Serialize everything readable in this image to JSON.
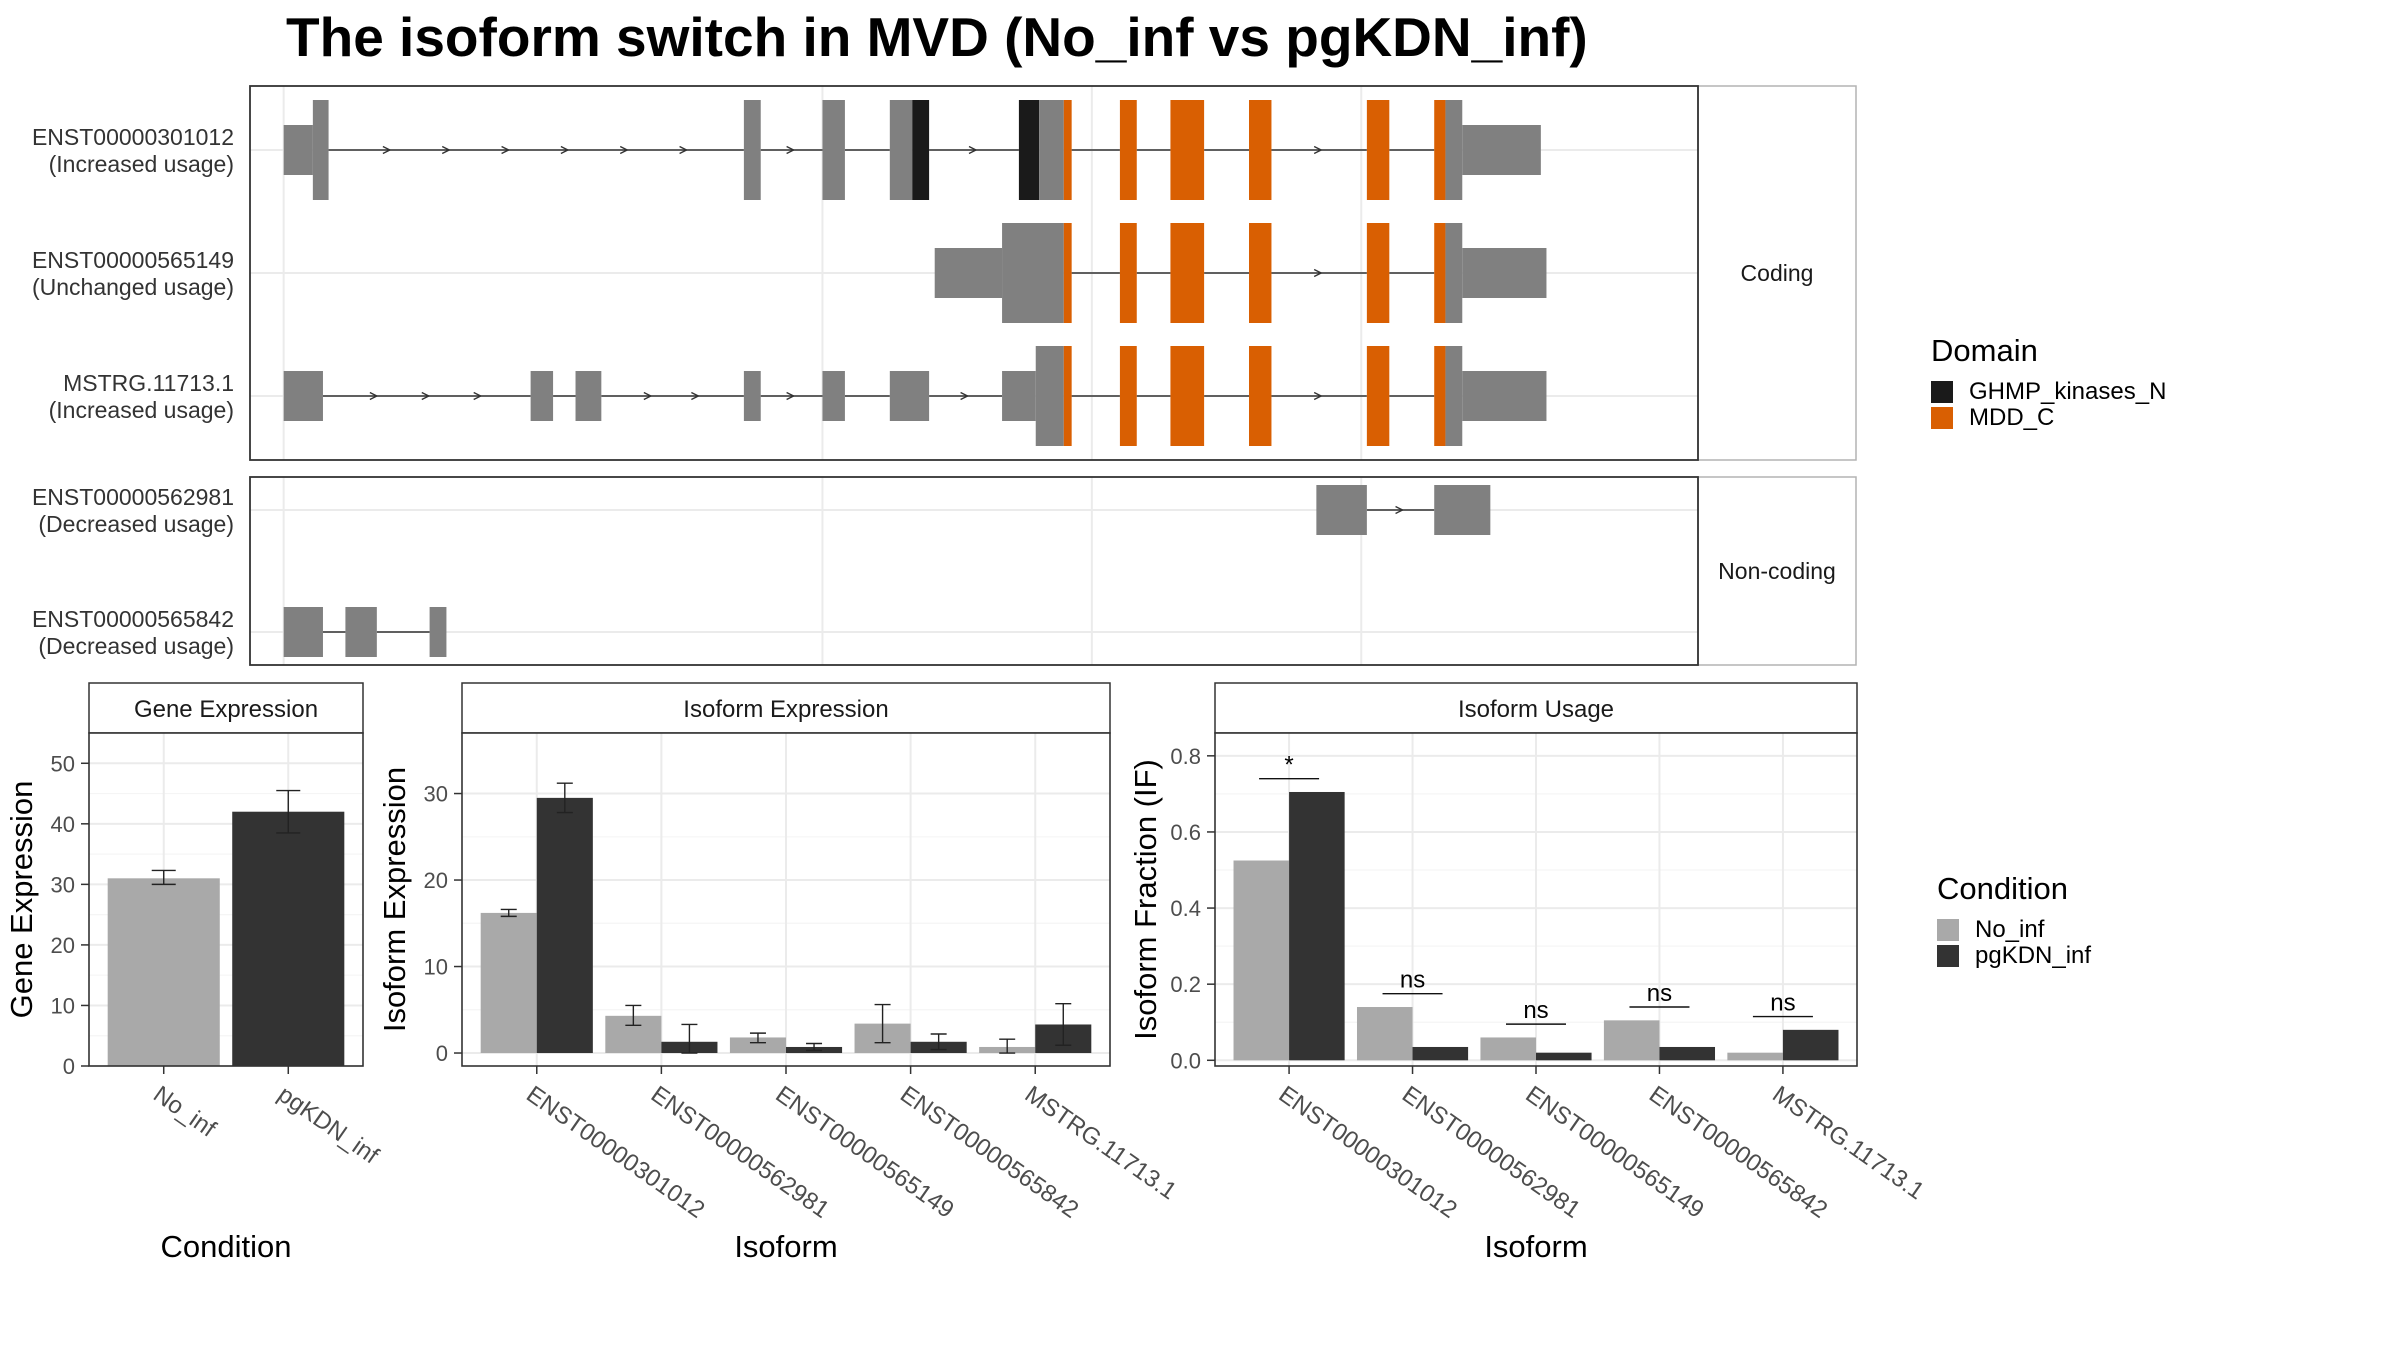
{
  "title": "The isoform switch in MVD (No_inf vs pgKDN_inf)",
  "colors": {
    "exon": "#808080",
    "GHMP_kinases_N": "#1a1a1a",
    "MDD_C": "#d95f02",
    "No_inf": "#a9a9a9",
    "pgKDN_inf": "#333333",
    "intron": "#333333",
    "grid": "#ebebeb",
    "border": "#333333",
    "strip_border": "#b3b3b3"
  },
  "facets": {
    "coding": {
      "label": "Coding"
    },
    "noncoding": {
      "label": "Non-coding"
    }
  },
  "transcripts": [
    {
      "name": "ENST00000301012",
      "usage": "(Increased usage)",
      "group": "coding",
      "segments": [
        {
          "s": 0.0,
          "e": 2.6,
          "w": 0.5
        },
        {
          "s": 2.6,
          "e": 4.0,
          "w": 1
        },
        {
          "s": 41.0,
          "e": 42.5,
          "w": 1
        },
        {
          "s": 48.0,
          "e": 50.0,
          "w": 1
        },
        {
          "s": 54.0,
          "e": 56.0,
          "w": 1
        },
        {
          "s": 56.0,
          "e": 57.5,
          "w": 1,
          "domain": "GHMP_kinases_N"
        },
        {
          "s": 65.5,
          "e": 67.3,
          "w": 1,
          "domain": "GHMP_kinases_N"
        },
        {
          "s": 67.3,
          "e": 69.5,
          "w": 1
        },
        {
          "s": 69.5,
          "e": 70.2,
          "w": 1,
          "domain": "MDD_C"
        },
        {
          "s": 74.5,
          "e": 76.0,
          "w": 1,
          "domain": "MDD_C"
        },
        {
          "s": 79.0,
          "e": 82.0,
          "w": 1,
          "domain": "MDD_C"
        },
        {
          "s": 86.0,
          "e": 88.0,
          "w": 1,
          "domain": "MDD_C"
        },
        {
          "s": 96.5,
          "e": 98.5,
          "w": 1,
          "domain": "MDD_C"
        },
        {
          "s": 102.5,
          "e": 103.5,
          "w": 1,
          "domain": "MDD_C"
        },
        {
          "s": 103.5,
          "e": 105.0,
          "w": 1
        },
        {
          "s": 105.0,
          "e": 112.0,
          "w": 0.5
        }
      ]
    },
    {
      "name": "ENST00000565149",
      "usage": "(Unchanged usage)",
      "group": "coding",
      "segments": [
        {
          "s": 58.0,
          "e": 64.0,
          "w": 0.5
        },
        {
          "s": 64.0,
          "e": 69.5,
          "w": 1
        },
        {
          "s": 69.5,
          "e": 70.2,
          "w": 1,
          "domain": "MDD_C"
        },
        {
          "s": 74.5,
          "e": 76.0,
          "w": 1,
          "domain": "MDD_C"
        },
        {
          "s": 79.0,
          "e": 82.0,
          "w": 1,
          "domain": "MDD_C"
        },
        {
          "s": 86.0,
          "e": 88.0,
          "w": 1,
          "domain": "MDD_C"
        },
        {
          "s": 96.5,
          "e": 98.5,
          "w": 1,
          "domain": "MDD_C"
        },
        {
          "s": 102.5,
          "e": 103.5,
          "w": 1,
          "domain": "MDD_C"
        },
        {
          "s": 103.5,
          "e": 105.0,
          "w": 1
        },
        {
          "s": 105.0,
          "e": 112.5,
          "w": 0.5
        }
      ]
    },
    {
      "name": "MSTRG.11713.1",
      "usage": "(Increased usage)",
      "group": "coding",
      "segments": [
        {
          "s": 0.0,
          "e": 3.5,
          "w": 0.5
        },
        {
          "s": 22.0,
          "e": 24.0,
          "w": 0.5
        },
        {
          "s": 26.0,
          "e": 28.3,
          "w": 0.5
        },
        {
          "s": 41.0,
          "e": 42.5,
          "w": 0.5
        },
        {
          "s": 48.0,
          "e": 50.0,
          "w": 0.5
        },
        {
          "s": 54.0,
          "e": 57.5,
          "w": 0.5
        },
        {
          "s": 64.0,
          "e": 67.0,
          "w": 0.5
        },
        {
          "s": 67.0,
          "e": 69.5,
          "w": 1
        },
        {
          "s": 69.5,
          "e": 70.2,
          "w": 1,
          "domain": "MDD_C"
        },
        {
          "s": 74.5,
          "e": 76.0,
          "w": 1,
          "domain": "MDD_C"
        },
        {
          "s": 79.0,
          "e": 82.0,
          "w": 1,
          "domain": "MDD_C"
        },
        {
          "s": 86.0,
          "e": 88.0,
          "w": 1,
          "domain": "MDD_C"
        },
        {
          "s": 96.5,
          "e": 98.5,
          "w": 1,
          "domain": "MDD_C"
        },
        {
          "s": 102.5,
          "e": 103.5,
          "w": 1,
          "domain": "MDD_C"
        },
        {
          "s": 103.5,
          "e": 105.0,
          "w": 1
        },
        {
          "s": 105.0,
          "e": 112.5,
          "w": 0.5
        }
      ]
    },
    {
      "name": "ENST00000562981",
      "usage": "(Decreased usage)",
      "group": "noncoding",
      "segments": [
        {
          "s": 92.0,
          "e": 96.5,
          "w": 0.5
        },
        {
          "s": 102.5,
          "e": 107.5,
          "w": 0.5
        }
      ]
    },
    {
      "name": "ENST00000565842",
      "usage": "(Decreased usage)",
      "group": "noncoding",
      "segments": [
        {
          "s": 0.0,
          "e": 3.5,
          "w": 0.5
        },
        {
          "s": 5.5,
          "e": 8.3,
          "w": 0.5
        },
        {
          "s": 13.0,
          "e": 14.5,
          "w": 0.5
        }
      ]
    }
  ],
  "legend_domain": {
    "title": "Domain",
    "items": [
      {
        "label": "GHMP_kinases_N",
        "color": "#1a1a1a"
      },
      {
        "label": "MDD_C",
        "color": "#d95f02"
      }
    ]
  },
  "legend_condition": {
    "title": "Condition",
    "items": [
      {
        "label": "No_inf",
        "color": "#a9a9a9"
      },
      {
        "label": "pgKDN_inf",
        "color": "#333333"
      }
    ]
  },
  "chart_data": [
    {
      "type": "bar",
      "strip": "Gene Expression",
      "xlabel": "Condition",
      "ylabel": "Gene Expression",
      "ylim": [
        0,
        55
      ],
      "yticks": [
        0,
        10,
        20,
        30,
        40,
        50
      ],
      "categories": [
        "No_inf",
        "pgKDN_inf"
      ],
      "values": [
        31,
        42
      ],
      "errors": [
        [
          30,
          32.3
        ],
        [
          38.5,
          45.5
        ]
      ]
    },
    {
      "type": "bar",
      "strip": "Isoform Expression",
      "xlabel": "Isoform",
      "ylabel": "Isoform Expression",
      "ylim": [
        -1.5,
        37
      ],
      "yticks": [
        0,
        10,
        20,
        30
      ],
      "categories": [
        "ENST00000301012",
        "ENST00000562981",
        "ENST00000565149",
        "ENST00000565842",
        "MSTRG.11713.1"
      ],
      "series": [
        {
          "name": "No_inf",
          "values": [
            16.2,
            4.3,
            1.8,
            3.4,
            0.7
          ],
          "errors": [
            [
              15.8,
              16.6
            ],
            [
              3.2,
              5.5
            ],
            [
              1.2,
              2.3
            ],
            [
              1.2,
              5.6
            ],
            [
              0,
              1.6
            ]
          ]
        },
        {
          "name": "pgKDN_inf",
          "values": [
            29.5,
            1.3,
            0.7,
            1.3,
            3.3
          ],
          "errors": [
            [
              27.8,
              31.2
            ],
            [
              0,
              3.3
            ],
            [
              0.3,
              1.1
            ],
            [
              0.4,
              2.2
            ],
            [
              0.9,
              5.7
            ]
          ]
        }
      ]
    },
    {
      "type": "bar",
      "strip": "Isoform Usage",
      "xlabel": "Isoform",
      "ylabel": "Isoform Fraction (IF)",
      "ylim": [
        -0.015,
        0.86
      ],
      "yticks": [
        0.0,
        0.2,
        0.4,
        0.6,
        0.8
      ],
      "ytick_labels": [
        "0.0",
        "0.2",
        "0.4",
        "0.6",
        "0.8"
      ],
      "categories": [
        "ENST00000301012",
        "ENST00000562981",
        "ENST00000565149",
        "ENST00000565842",
        "MSTRG.11713.1"
      ],
      "series": [
        {
          "name": "No_inf",
          "values": [
            0.525,
            0.14,
            0.06,
            0.105,
            0.02
          ]
        },
        {
          "name": "pgKDN_inf",
          "values": [
            0.705,
            0.035,
            0.02,
            0.035,
            0.08
          ]
        }
      ],
      "significance": [
        "*",
        "ns",
        "ns",
        "ns",
        "ns"
      ],
      "sig_positions": [
        0.74,
        0.175,
        0.095,
        0.14,
        0.115
      ]
    }
  ]
}
